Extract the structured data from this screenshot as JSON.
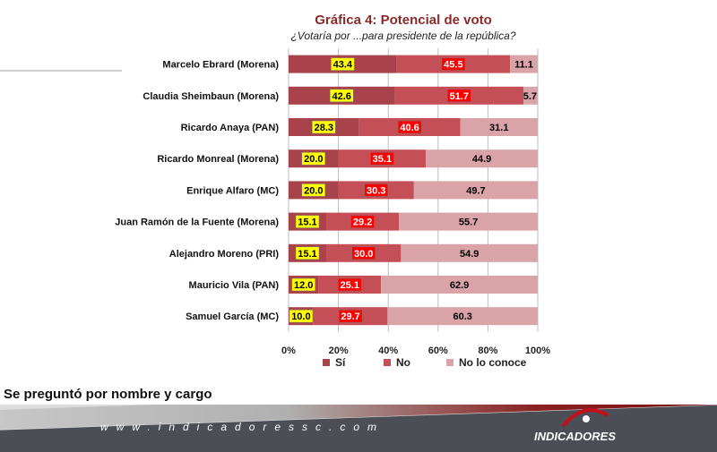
{
  "chart_data": {
    "type": "bar",
    "orientation": "horizontal",
    "stacked": true,
    "normalized": true,
    "title": "Gráfica 4: Potencial de voto",
    "subtitle": "¿Votaría por ...para presidente de la república?",
    "categories": [
      "Marcelo Ebrard (Morena)",
      "Claudia Sheimbaun (Morena)",
      "Ricardo Anaya (PAN)",
      "Ricardo Monreal (Morena)",
      "Enrique Alfaro (MC)",
      "Juan Ramón de la Fuente (Morena)",
      "Alejandro Moreno (PRI)",
      "Mauricio Vila (PAN)",
      "Samuel García (MC)"
    ],
    "series": [
      {
        "name": "Sí",
        "color": "#a8424b",
        "label_bg": "#ffff00",
        "label_color": "#000000",
        "values": [
          43.4,
          42.6,
          28.3,
          20.0,
          20.0,
          15.1,
          15.1,
          12.0,
          10.0
        ],
        "labels": [
          "43.4",
          "42.6",
          "28.3",
          "20.0",
          "20.0",
          "15.1",
          "15.1",
          "12.0",
          "10.0"
        ]
      },
      {
        "name": "No",
        "color": "#c54f57",
        "label_bg": "#ff0000",
        "label_color": "#ffffff",
        "values": [
          45.5,
          51.7,
          40.6,
          35.1,
          30.3,
          29.2,
          30.0,
          25.1,
          29.7
        ],
        "labels": [
          "45.5",
          "51.7",
          "40.6",
          "35.1",
          "30.3",
          "29.2",
          "30.0",
          "25.1",
          "29.7"
        ]
      },
      {
        "name": "No lo conoce",
        "color": "#d9a3a7",
        "label_bg": "",
        "label_color": "#000000",
        "values": [
          11.1,
          5.7,
          31.1,
          44.9,
          49.7,
          55.7,
          54.9,
          62.9,
          60.3
        ],
        "labels": [
          "11.1",
          "5.7",
          "31.1",
          "44.9",
          "49.7",
          "55.7",
          "54.9",
          "62.9",
          "60.3"
        ]
      }
    ],
    "x_ticks": [
      "0%",
      "20%",
      "40%",
      "60%",
      "80%",
      "100%"
    ],
    "xlim": [
      0,
      100
    ],
    "grid": true,
    "legend": "bottom"
  },
  "footnote": "Se preguntó por nombre y cargo",
  "footer": {
    "url": "www.indicadoressc.com",
    "brand": "INDICADORES"
  }
}
